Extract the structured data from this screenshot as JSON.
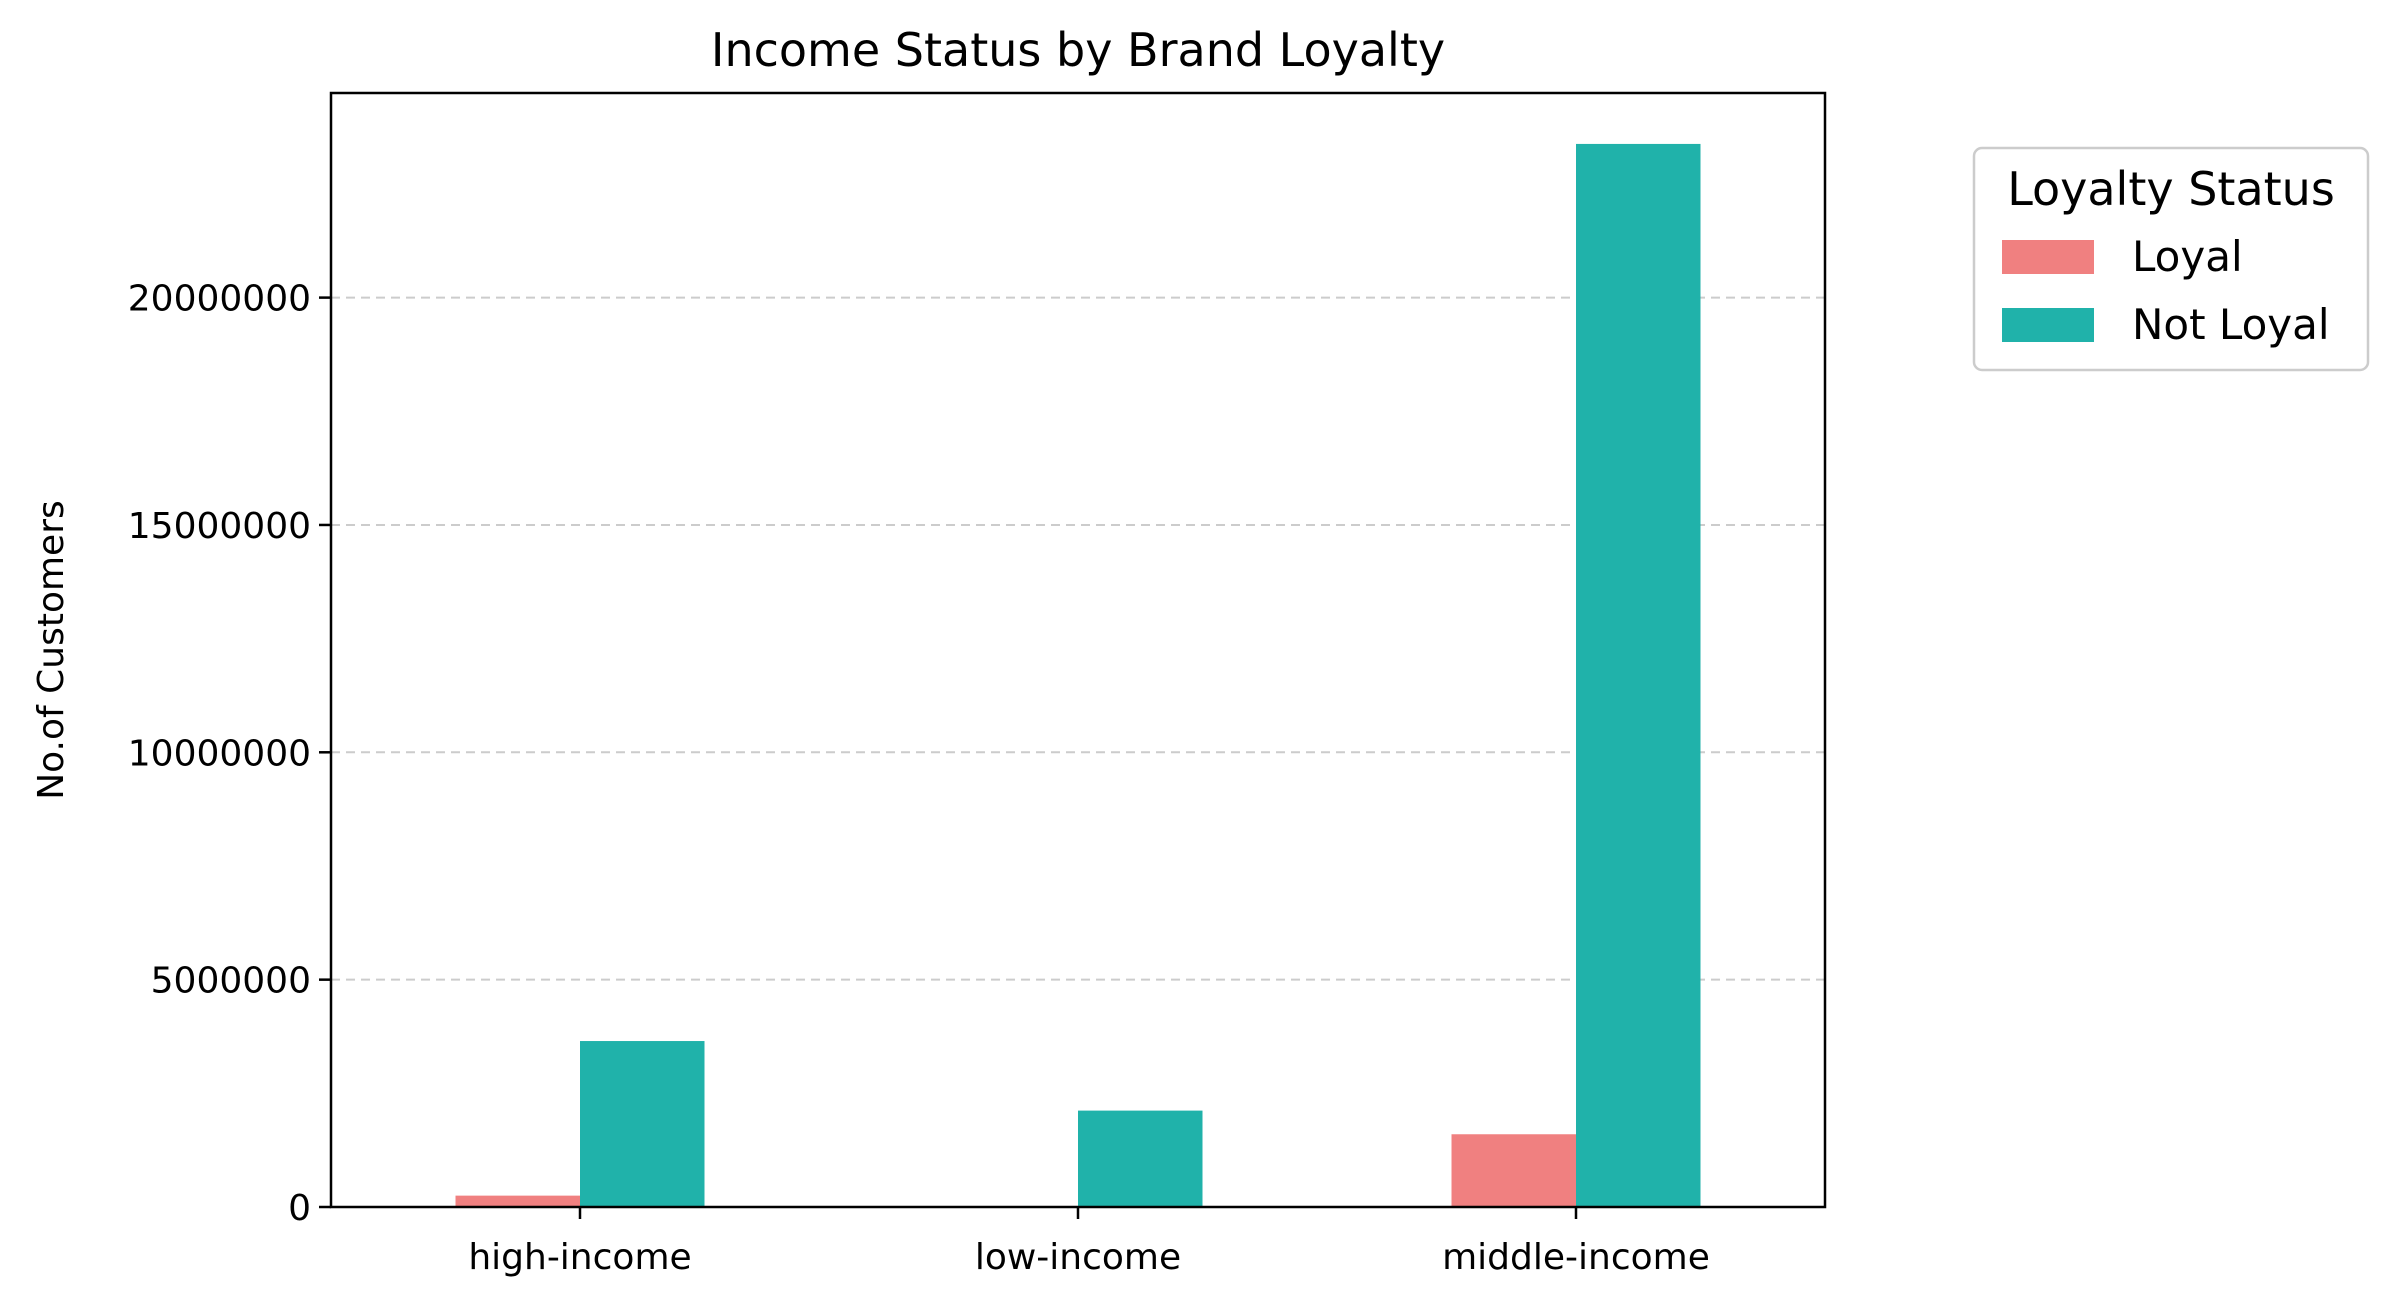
{
  "chart_data": {
    "type": "bar",
    "title": "Income Status by Brand Loyalty",
    "xlabel": "",
    "ylabel": "No.of Customers",
    "categories": [
      "high-income",
      "low-income",
      "middle-income"
    ],
    "series": [
      {
        "name": "Loyal",
        "color": "#f08080",
        "values": [
          250000,
          0,
          1600000
        ]
      },
      {
        "name": "Not Loyal",
        "color": "#20b2aa",
        "values": [
          3650000,
          2120000,
          23380000
        ]
      }
    ],
    "ylim": [
      0,
      24500000
    ],
    "yticks": [
      0,
      5000000,
      10000000,
      15000000,
      20000000
    ],
    "ytick_labels": [
      "0",
      "5000000",
      "10000000",
      "15000000",
      "20000000"
    ],
    "grid": {
      "axis": "y",
      "style": "dashed",
      "color": "#cccccc"
    },
    "legend": {
      "title": "Loyalty Status",
      "placement": "outside-right-top"
    }
  }
}
